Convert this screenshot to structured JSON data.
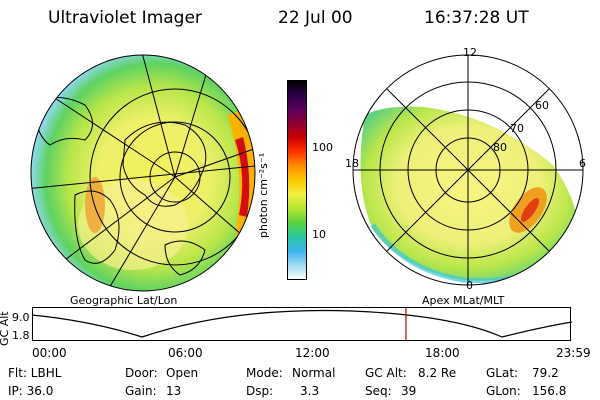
{
  "header": {
    "title": "Ultraviolet Imager",
    "date": "22 Jul 00",
    "time": "16:37:28 UT"
  },
  "left_panel": {
    "label": "Geographic Lat/Lon"
  },
  "right_panel": {
    "label": "Apex MLat/MLT",
    "mlt_labels": {
      "top": "12",
      "left": "18",
      "right": "6",
      "bottom": "0"
    },
    "lat_labels": [
      "60",
      "70",
      "80"
    ]
  },
  "colorbar": {
    "unit": "photon cm⁻²s⁻¹",
    "ticks": [
      "100",
      "10"
    ],
    "colors": [
      "#000000",
      "#2a0040",
      "#5a005a",
      "#8b0033",
      "#c80000",
      "#ff3000",
      "#ff8c00",
      "#ffc800",
      "#f0f040",
      "#b4e632",
      "#5ad23c",
      "#28c8a0",
      "#3cb4f0",
      "#a0dcf0",
      "#ffffff"
    ]
  },
  "altitude_plot": {
    "axis_label": "GC Alt",
    "y_ticks": [
      "9.0",
      "1.8"
    ],
    "x_ticks": [
      "00:00",
      "06:00",
      "12:00",
      "18:00",
      "23:59"
    ],
    "cursor_hour": 16.62,
    "cursor_color": "#c00000"
  },
  "info": {
    "row1": {
      "filter": "Flt: LBHL",
      "door_label": "Door:",
      "door": "Open",
      "mode_label": "Mode:",
      "mode": "Normal",
      "gcalt_label": "GC Alt:",
      "gcalt": "8.2 Re",
      "glat_label": "GLat:",
      "glat": "79.2"
    },
    "row2": {
      "ip": "IP: 36.0",
      "gain_label": "Gain:",
      "gain": "13",
      "dsp_label": "Dsp:",
      "dsp": "3.3",
      "seq_label": "Seq:",
      "seq": "39",
      "glon_label": "GLon:",
      "glon": "156.8"
    }
  }
}
